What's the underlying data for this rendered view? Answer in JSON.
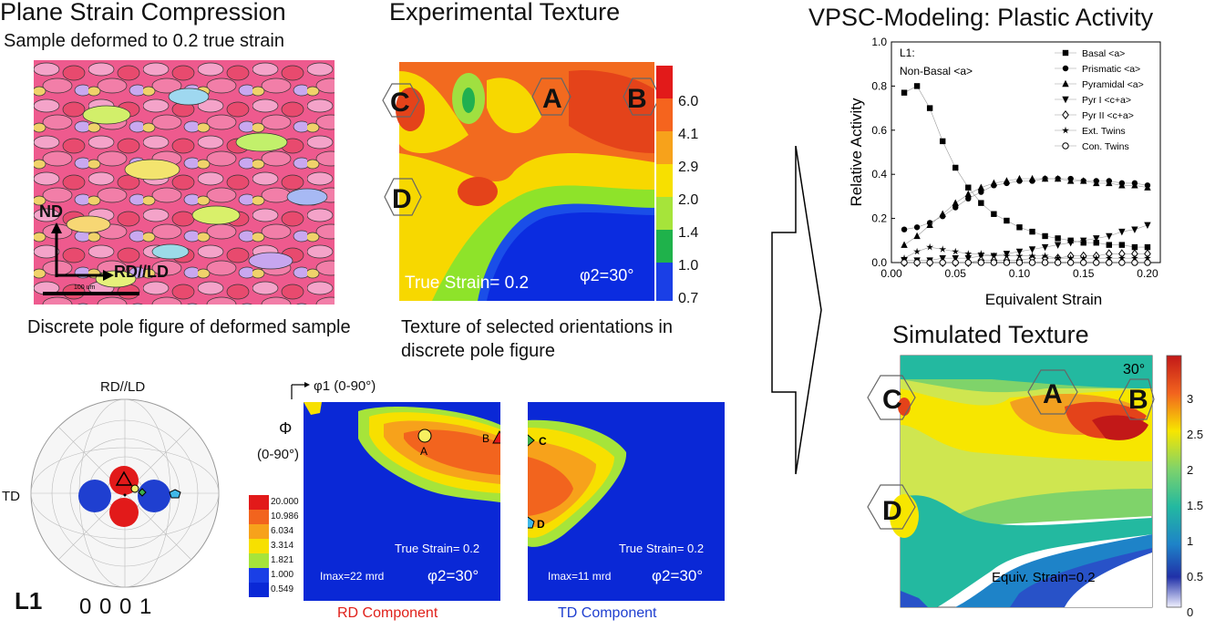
{
  "headers": {
    "psc_title": "Plane Strain Compression",
    "psc_sub": "Sample deformed to 0.2 true strain",
    "exp_title": "Experimental Texture",
    "vpsc_title": "VPSC-Modeling: Plastic Activity",
    "sim_title": "Simulated Texture"
  },
  "ebsd": {
    "nd": "ND",
    "rd_ld": "RD//LD",
    "scalebar": "100 um"
  },
  "captions": {
    "discrete": "Discrete pole figure of deformed sample",
    "selected": "Texture of selected orientations in discrete pole figure"
  },
  "pole_figure": {
    "top": "RD//LD",
    "left": "TD",
    "bottom": "0 0 0 1",
    "sample": "L1"
  },
  "exp_texture": {
    "labels": [
      "A",
      "B",
      "C",
      "D"
    ],
    "strain": "True Strain= 0.2",
    "phi": "φ2=30°",
    "colorbar": [
      "6.0",
      "4.1",
      "2.9",
      "2.0",
      "1.4",
      "1.0",
      "0.7"
    ]
  },
  "components": {
    "phi1": "φ1 (0-90°)",
    "Phi": "Φ",
    "Phi_range": "(0-90°)",
    "legend": [
      "20.000",
      "10.986",
      "6.034",
      "3.314",
      "1.821",
      "1.000",
      "0.549"
    ],
    "rd_title": "RD Component",
    "td_title": "TD Component",
    "rd_strain": "True Strain= 0.2",
    "td_strain": "True Strain= 0.2",
    "rd_imax": "Imax=22 mrd",
    "td_imax": "Imax=11 mrd",
    "phi2": "φ2=30°",
    "pts": [
      "A",
      "B",
      "C",
      "D"
    ],
    "colors": {
      "rd": "#e0201a",
      "td": "#1f3fd0"
    }
  },
  "sim_texture": {
    "labels": [
      "A",
      "B",
      "C",
      "D"
    ],
    "corner": "30°",
    "strain": "Equiv. Strain=0.2",
    "colorbar": [
      "3",
      "2.5",
      "2",
      "1.5",
      "1",
      "0.5",
      "0"
    ]
  },
  "chart_data": {
    "type": "scatter",
    "annotation": [
      "L1:",
      "Non-Basal <a>"
    ],
    "xlabel": "Equivalent Strain",
    "ylabel": "Relative Activity",
    "xlim": [
      0,
      0.21
    ],
    "ylim": [
      0,
      1.0
    ],
    "xticks": [
      "0.00",
      "0.05",
      "0.10",
      "0.15",
      "0.20"
    ],
    "yticks": [
      "0.0",
      "0.2",
      "0.4",
      "0.6",
      "0.8",
      "1.0"
    ],
    "x": [
      0.01,
      0.02,
      0.03,
      0.04,
      0.05,
      0.06,
      0.07,
      0.08,
      0.09,
      0.1,
      0.11,
      0.12,
      0.13,
      0.14,
      0.15,
      0.16,
      0.17,
      0.18,
      0.19,
      0.2
    ],
    "series": [
      {
        "name": "Basal <a>",
        "marker": "square",
        "values": [
          0.77,
          0.8,
          0.7,
          0.55,
          0.43,
          0.34,
          0.27,
          0.22,
          0.19,
          0.16,
          0.14,
          0.12,
          0.11,
          0.1,
          0.09,
          0.09,
          0.08,
          0.08,
          0.07,
          0.07
        ]
      },
      {
        "name": "Prismatic <a>",
        "marker": "circle",
        "values": [
          0.15,
          0.16,
          0.18,
          0.21,
          0.25,
          0.29,
          0.32,
          0.35,
          0.36,
          0.37,
          0.37,
          0.38,
          0.38,
          0.38,
          0.37,
          0.37,
          0.37,
          0.36,
          0.36,
          0.35
        ]
      },
      {
        "name": "Pyramidal <a>",
        "marker": "triangle-up",
        "values": [
          0.08,
          0.12,
          0.17,
          0.22,
          0.27,
          0.31,
          0.34,
          0.36,
          0.37,
          0.38,
          0.38,
          0.38,
          0.38,
          0.37,
          0.37,
          0.36,
          0.36,
          0.35,
          0.35,
          0.34
        ]
      },
      {
        "name": "Pyr I <c+a>",
        "marker": "triangle-down",
        "values": [
          0.01,
          0.01,
          0.01,
          0.02,
          0.02,
          0.02,
          0.03,
          0.03,
          0.04,
          0.05,
          0.06,
          0.07,
          0.08,
          0.09,
          0.1,
          0.11,
          0.12,
          0.14,
          0.15,
          0.17
        ]
      },
      {
        "name": "Pyr II <c+a>",
        "marker": "diamond-open",
        "values": [
          0.0,
          0.0,
          0.0,
          0.0,
          0.0,
          0.0,
          0.01,
          0.01,
          0.01,
          0.01,
          0.02,
          0.02,
          0.02,
          0.03,
          0.03,
          0.03,
          0.04,
          0.04,
          0.04,
          0.04
        ]
      },
      {
        "name": "Ext. Twins",
        "marker": "star",
        "values": [
          0.02,
          0.05,
          0.07,
          0.06,
          0.05,
          0.04,
          0.04,
          0.03,
          0.03,
          0.03,
          0.03,
          0.03,
          0.02,
          0.02,
          0.02,
          0.02,
          0.02,
          0.02,
          0.02,
          0.02
        ]
      },
      {
        "name": "Con. Twins",
        "marker": "circle-open",
        "values": [
          0.0,
          0.0,
          0.0,
          0.0,
          0.0,
          0.0,
          0.0,
          0.0,
          0.0,
          0.0,
          0.0,
          0.0,
          0.0,
          0.0,
          0.0,
          0.0,
          0.0,
          0.0,
          0.0,
          0.0
        ]
      }
    ],
    "legend_position": "top-right",
    "grid": false
  }
}
